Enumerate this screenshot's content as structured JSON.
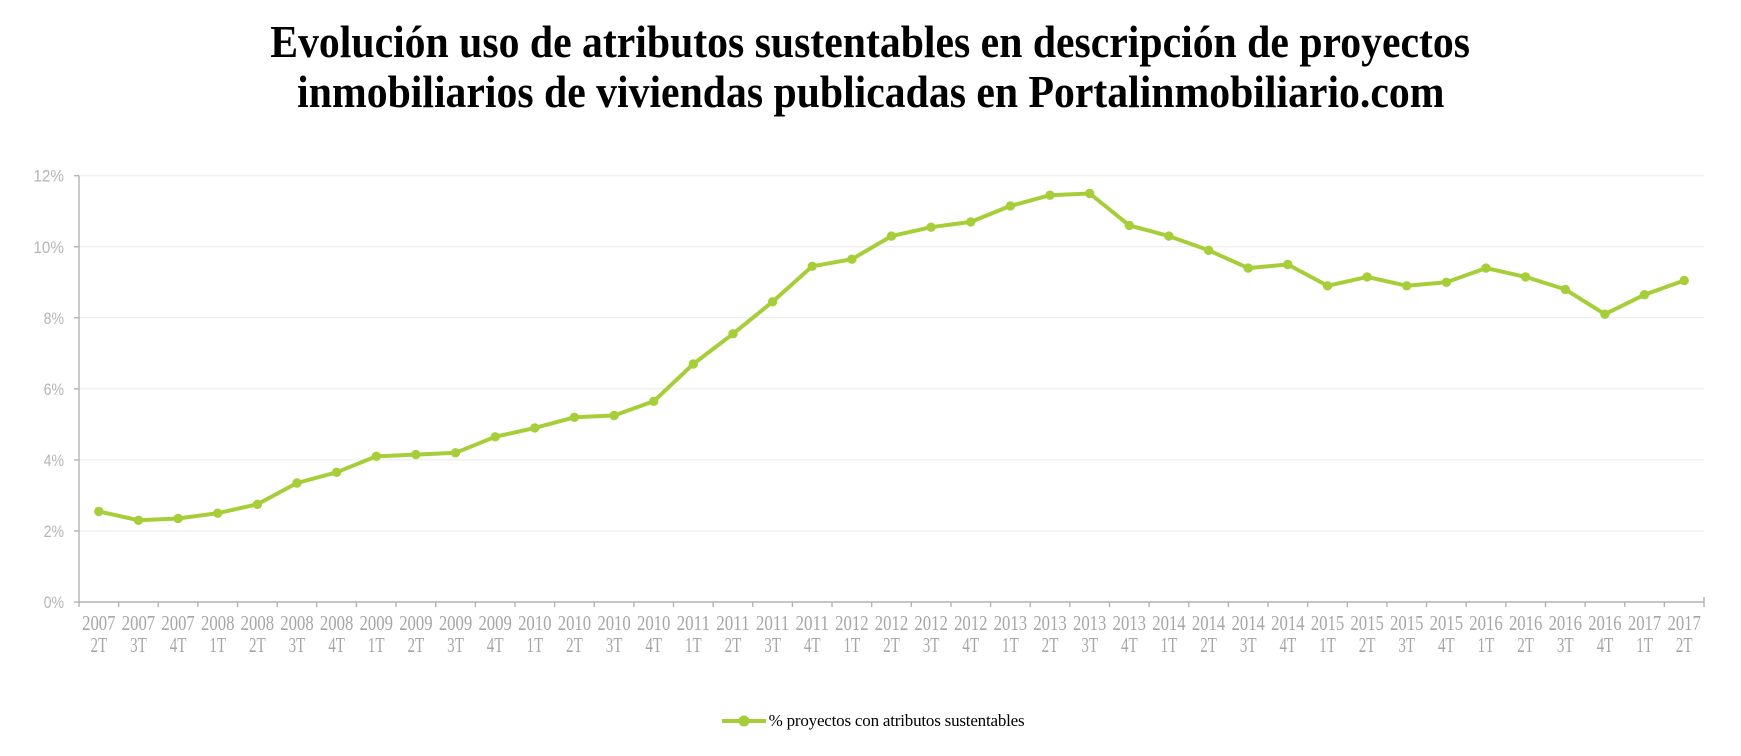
{
  "title_lines": [
    "Evolución uso de atributos sustentables en descripción de proyectos",
    "inmobiliarios de viviendas publicadas en Portalinmobiliario.com"
  ],
  "chart_data": {
    "type": "line",
    "title": "Evolución uso de atributos sustentables en descripción de proyectos inmobiliarios de viviendas publicadas en Portalinmobiliario.com",
    "categories": [
      "2007 2T",
      "2007 3T",
      "2007 4T",
      "2008 1T",
      "2008 2T",
      "2008 3T",
      "2008 4T",
      "2009 1T",
      "2009 2T",
      "2009 3T",
      "2009 4T",
      "2010 1T",
      "2010 2T",
      "2010 3T",
      "2010 4T",
      "2011 1T",
      "2011 2T",
      "2011 3T",
      "2011 4T",
      "2012 1T",
      "2012 2T",
      "2012 3T",
      "2012 4T",
      "2013 1T",
      "2013 2T",
      "2013 3T",
      "2013 4T",
      "2014 1T",
      "2014 2T",
      "2014 3T",
      "2014 4T",
      "2015 1T",
      "2015 2T",
      "2015 3T",
      "2015 4T",
      "2016 1T",
      "2016 2T",
      "2016 3T",
      "2016 4T",
      "2017 1T",
      "2017 2T"
    ],
    "series": [
      {
        "name": "% proyectos con atributos sustentables",
        "color": "#a6ce39",
        "values": [
          2.55,
          2.3,
          2.35,
          2.5,
          2.75,
          3.35,
          3.65,
          4.1,
          4.15,
          4.2,
          4.65,
          4.9,
          5.2,
          5.25,
          5.65,
          6.7,
          7.55,
          8.45,
          9.45,
          9.65,
          10.3,
          10.55,
          10.7,
          11.15,
          11.45,
          11.5,
          10.6,
          10.3,
          9.9,
          9.4,
          9.5,
          8.9,
          9.15,
          8.9,
          9.0,
          9.4,
          9.15,
          8.8,
          8.1,
          8.65,
          9.05
        ]
      }
    ],
    "xlabel": "",
    "ylabel": "",
    "ylim": [
      0,
      12
    ],
    "ytick_step": 2,
    "ytick_labels": [
      "0%",
      "2%",
      "4%",
      "6%",
      "8%",
      "10%",
      "12%"
    ],
    "grid": true,
    "legend_position": "bottom",
    "colors": {
      "axis": "#b3b3b3",
      "grid": "#eaeaea",
      "ylabel": "#b5b5b5",
      "xlabel": "#a6a6a6"
    }
  }
}
